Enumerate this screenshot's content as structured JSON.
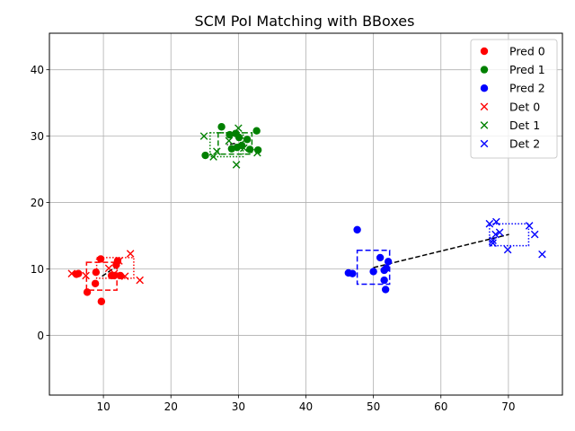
{
  "chart_data": {
    "type": "scatter",
    "title": "SCM PoI Matching with BBoxes",
    "xlabel": "",
    "ylabel": "",
    "xlim": [
      2,
      78
    ],
    "ylim": [
      -9,
      45.5
    ],
    "xticks": [
      10,
      20,
      30,
      40,
      50,
      60,
      70
    ],
    "yticks": [
      0,
      10,
      20,
      30,
      40
    ],
    "grid": true,
    "legend_position": "top-right",
    "series": [
      {
        "name": "Pred 0",
        "marker": "circle",
        "color": "#ff0000",
        "points": [
          [
            9.6,
            11.5
          ],
          [
            6.3,
            9.3
          ],
          [
            6.0,
            9.2
          ],
          [
            8.9,
            9.5
          ],
          [
            11.6,
            9.0
          ],
          [
            11.9,
            10.6
          ],
          [
            12.1,
            11.2
          ],
          [
            12.5,
            9.0
          ],
          [
            7.6,
            6.5
          ],
          [
            8.8,
            7.8
          ],
          [
            9.7,
            5.1
          ],
          [
            11.2,
            9.0
          ]
        ]
      },
      {
        "name": "Pred 1",
        "marker": "circle",
        "color": "#008000",
        "points": [
          [
            27.5,
            31.4
          ],
          [
            28.7,
            30.2
          ],
          [
            29.6,
            30.4
          ],
          [
            32.7,
            30.8
          ],
          [
            31.3,
            29.5
          ],
          [
            25.1,
            27.1
          ],
          [
            29.0,
            28.1
          ],
          [
            29.8,
            28.3
          ],
          [
            30.5,
            28.6
          ],
          [
            31.7,
            28.0
          ],
          [
            32.9,
            27.9
          ],
          [
            30.1,
            29.8
          ]
        ]
      },
      {
        "name": "Pred 2",
        "marker": "circle",
        "color": "#0000ff",
        "points": [
          [
            47.6,
            15.9
          ],
          [
            51.0,
            11.7
          ],
          [
            52.2,
            11.1
          ],
          [
            46.3,
            9.4
          ],
          [
            46.9,
            9.3
          ],
          [
            50.0,
            9.6
          ],
          [
            51.6,
            9.8
          ],
          [
            51.6,
            8.3
          ],
          [
            51.8,
            6.9
          ],
          [
            51.9,
            10.1
          ]
        ]
      },
      {
        "name": "Det 0",
        "marker": "x",
        "color": "#ff0000",
        "points": [
          [
            5.3,
            9.3
          ],
          [
            7.4,
            9.0
          ],
          [
            10.8,
            10.1
          ],
          [
            12.3,
            11.2
          ],
          [
            14.0,
            12.3
          ],
          [
            13.2,
            8.9
          ],
          [
            15.4,
            8.3
          ],
          [
            11.6,
            9.3
          ]
        ]
      },
      {
        "name": "Det 1",
        "marker": "x",
        "color": "#008000",
        "points": [
          [
            24.9,
            30.0
          ],
          [
            26.3,
            26.9
          ],
          [
            26.8,
            27.7
          ],
          [
            29.7,
            25.7
          ],
          [
            30.0,
            31.2
          ],
          [
            32.8,
            27.5
          ],
          [
            28.6,
            29.3
          ],
          [
            30.8,
            28.2
          ]
        ]
      },
      {
        "name": "Det 2",
        "marker": "x",
        "color": "#0000ff",
        "points": [
          [
            67.2,
            16.8
          ],
          [
            68.2,
            17.1
          ],
          [
            68.7,
            15.5
          ],
          [
            67.7,
            14.3
          ],
          [
            67.7,
            13.9
          ],
          [
            69.9,
            12.9
          ],
          [
            73.1,
            16.5
          ],
          [
            73.9,
            15.2
          ],
          [
            75.0,
            12.2
          ],
          [
            68.1,
            15.2
          ]
        ]
      }
    ],
    "pred_bboxes": [
      {
        "color": "#ff0000",
        "x0": 7.5,
        "x1": 12.0,
        "y0": 6.8,
        "y1": 11.0
      },
      {
        "color": "#008000",
        "x0": 27.0,
        "x1": 32.0,
        "y0": 27.3,
        "y1": 30.5
      },
      {
        "color": "#0000ff",
        "x0": 47.6,
        "x1": 52.4,
        "y0": 7.7,
        "y1": 12.8
      }
    ],
    "det_bboxes": [
      {
        "color": "#ff0000",
        "x0": 9.0,
        "x1": 14.5,
        "y0": 8.6,
        "y1": 11.7
      },
      {
        "color": "#008000",
        "x0": 25.8,
        "x1": 30.7,
        "y0": 26.9,
        "y1": 30.5
      },
      {
        "color": "#0000ff",
        "x0": 67.2,
        "x1": 73.0,
        "y0": 13.5,
        "y1": 16.8
      }
    ],
    "match_lines": [
      {
        "from": [
          9.8,
          8.9
        ],
        "to": [
          11.7,
          10.2
        ]
      },
      {
        "from": [
          29.5,
          28.9
        ],
        "to": [
          28.3,
          28.7
        ]
      },
      {
        "from": [
          50.0,
          10.2
        ],
        "to": [
          70.1,
          15.2
        ]
      }
    ]
  }
}
